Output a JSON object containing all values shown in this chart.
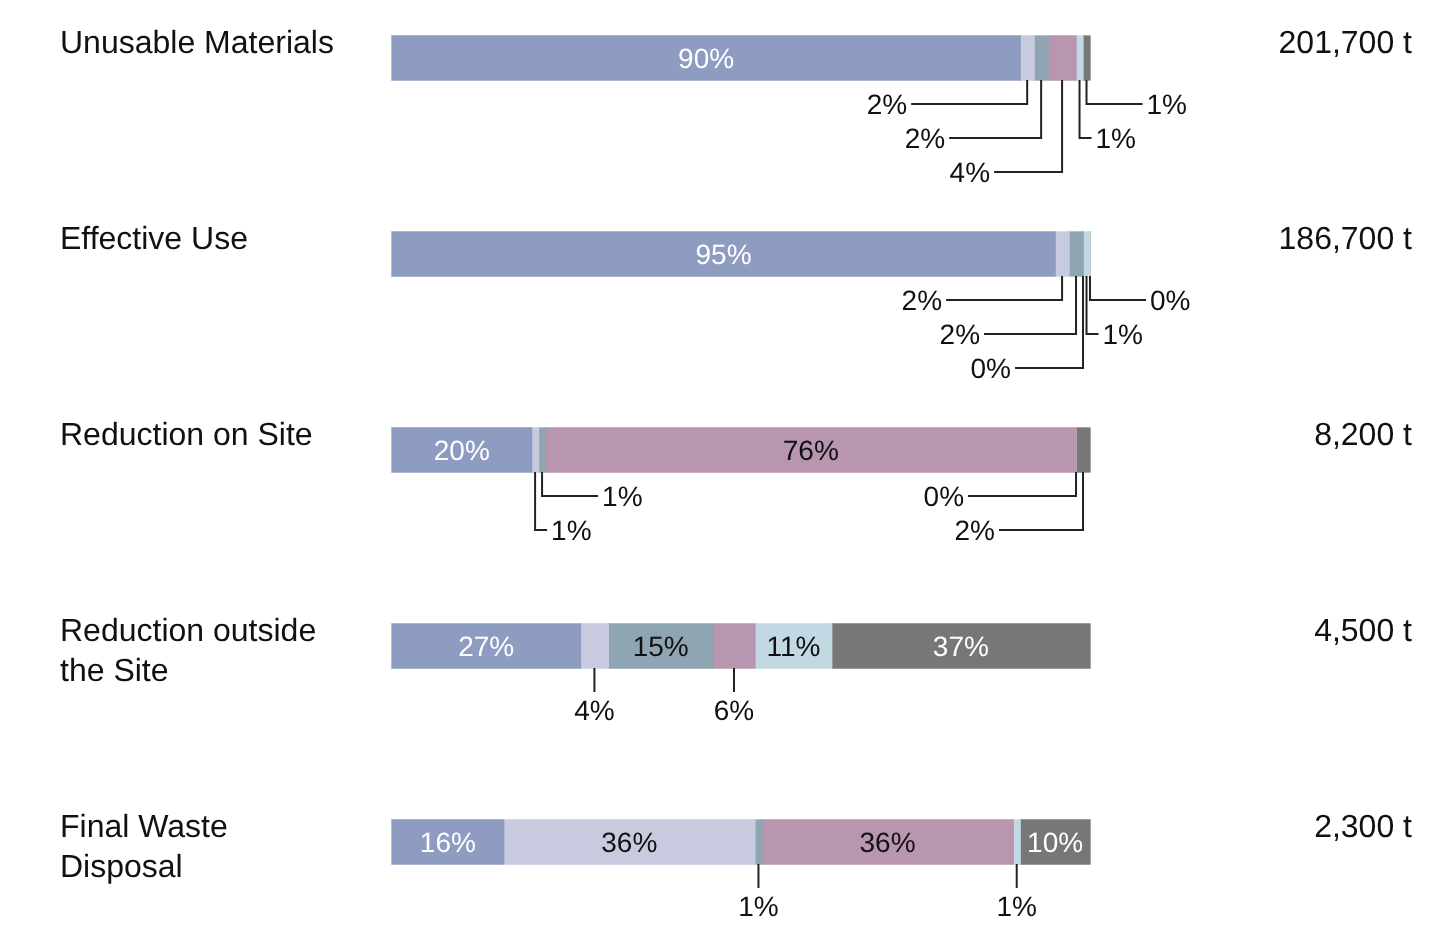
{
  "chart_data": {
    "type": "bar",
    "orientation": "horizontal",
    "stacked": true,
    "categories": [
      "Unusable Materials",
      "Effective Use",
      "Reduction on Site",
      "Reduction outside the Site",
      "Final Waste Disposal"
    ],
    "xlim": [
      0,
      100
    ],
    "tick_labels": "y",
    "legend": false,
    "series": [
      {
        "color": "#8e9cc1",
        "values": [
          90,
          95,
          20,
          27,
          16
        ],
        "value_labels": [
          "90%",
          "95%",
          "20%",
          "27%",
          "16%"
        ]
      },
      {
        "color": "#c8cae0",
        "values": [
          2,
          2,
          1,
          4,
          36
        ],
        "value_labels": [
          "2%",
          "2%",
          "1%",
          "4%",
          "36%"
        ]
      },
      {
        "color": "#8fa5b1",
        "values": [
          2,
          2,
          1,
          15,
          1
        ],
        "value_labels": [
          "2%",
          "2%",
          "1%",
          "15%",
          "1%"
        ]
      },
      {
        "color": "#b896b0",
        "values": [
          4,
          0,
          76,
          6,
          36
        ],
        "value_labels": [
          "4%",
          "0%",
          "76%",
          "6%",
          "36%"
        ]
      },
      {
        "color": "#c2d9e3",
        "values": [
          1,
          1,
          0,
          11,
          1
        ],
        "value_labels": [
          "1%",
          "1%",
          "0%",
          "11%",
          "1%"
        ]
      },
      {
        "color": "#777777",
        "values": [
          1,
          0,
          2,
          37,
          10
        ],
        "value_labels": [
          "1%",
          "0%",
          "2%",
          "37%",
          "10%"
        ]
      }
    ],
    "annotations": [
      "201,700 t",
      "186,700 t",
      "8,200 t",
      "4,500 t",
      "2,300 t"
    ]
  }
}
